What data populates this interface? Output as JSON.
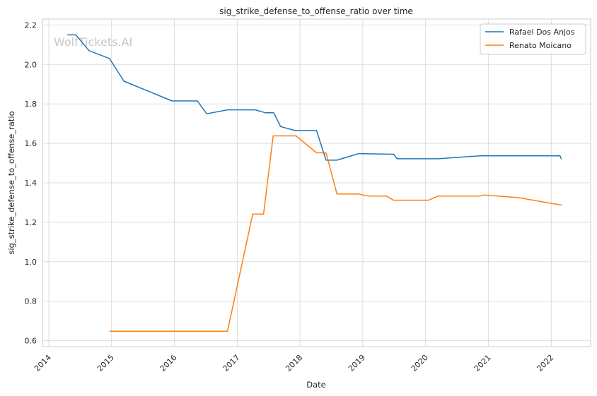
{
  "chart_data": {
    "type": "line",
    "title": "sig_strike_defense_to_offense_ratio over time",
    "xlabel": "Date",
    "ylabel": "sig_strike_defense_to_offense_ratio",
    "watermark": "WolfTickets.AI",
    "x_ticks": [
      "2014",
      "2015",
      "2016",
      "2017",
      "2018",
      "2019",
      "2020",
      "2021",
      "2022"
    ],
    "y_ticks": [
      "0.6",
      "0.8",
      "1.0",
      "1.2",
      "1.4",
      "1.6",
      "1.8",
      "2.0",
      "2.2"
    ],
    "xlim": [
      "2013-11-25",
      "2022-08-18"
    ],
    "ylim": [
      0.57,
      2.23
    ],
    "grid": true,
    "legend_position": "top-right",
    "series": [
      {
        "name": "Rafael Dos Anjos",
        "color": "#1f77b4",
        "points": [
          [
            "2014-04-19",
            2.15
          ],
          [
            "2014-06-07",
            2.15
          ],
          [
            "2014-08-23",
            2.07
          ],
          [
            "2014-12-20",
            2.03
          ],
          [
            "2015-03-14",
            1.915
          ],
          [
            "2015-12-19",
            1.815
          ],
          [
            "2016-05-14",
            1.815
          ],
          [
            "2016-07-07",
            1.75
          ],
          [
            "2016-11-05",
            1.77
          ],
          [
            "2017-04-15",
            1.77
          ],
          [
            "2017-06-15",
            1.755
          ],
          [
            "2017-08-01",
            1.755
          ],
          [
            "2017-09-10",
            1.685
          ],
          [
            "2017-12-02",
            1.665
          ],
          [
            "2018-04-07",
            1.665
          ],
          [
            "2018-06-01",
            1.515
          ],
          [
            "2018-08-04",
            1.515
          ],
          [
            "2018-12-08",
            1.548
          ],
          [
            "2019-06-29",
            1.545
          ],
          [
            "2019-07-20",
            1.522
          ],
          [
            "2020-03-14",
            1.522
          ],
          [
            "2020-11-14",
            1.537
          ],
          [
            "2022-02-21",
            1.537
          ],
          [
            "2022-03-01",
            1.52
          ]
        ]
      },
      {
        "name": "Renato Moicano",
        "color": "#ff7f0e",
        "points": [
          [
            "2014-12-20",
            0.648
          ],
          [
            "2016-11-05",
            0.648
          ],
          [
            "2017-04-01",
            1.242
          ],
          [
            "2017-06-03",
            1.242
          ],
          [
            "2017-07-29",
            1.638
          ],
          [
            "2017-12-09",
            1.638
          ],
          [
            "2018-04-07",
            1.552
          ],
          [
            "2018-06-01",
            1.552
          ],
          [
            "2018-08-04",
            1.343
          ],
          [
            "2018-12-08",
            1.343
          ],
          [
            "2019-02-02",
            1.333
          ],
          [
            "2019-05-18",
            1.333
          ],
          [
            "2019-06-29",
            1.312
          ],
          [
            "2020-01-18",
            1.312
          ],
          [
            "2020-03-14",
            1.333
          ],
          [
            "2020-11-14",
            1.333
          ],
          [
            "2020-12-05",
            1.338
          ],
          [
            "2021-06-26",
            1.325
          ],
          [
            "2022-02-21",
            1.288
          ],
          [
            "2022-03-05",
            1.288
          ]
        ]
      }
    ]
  }
}
